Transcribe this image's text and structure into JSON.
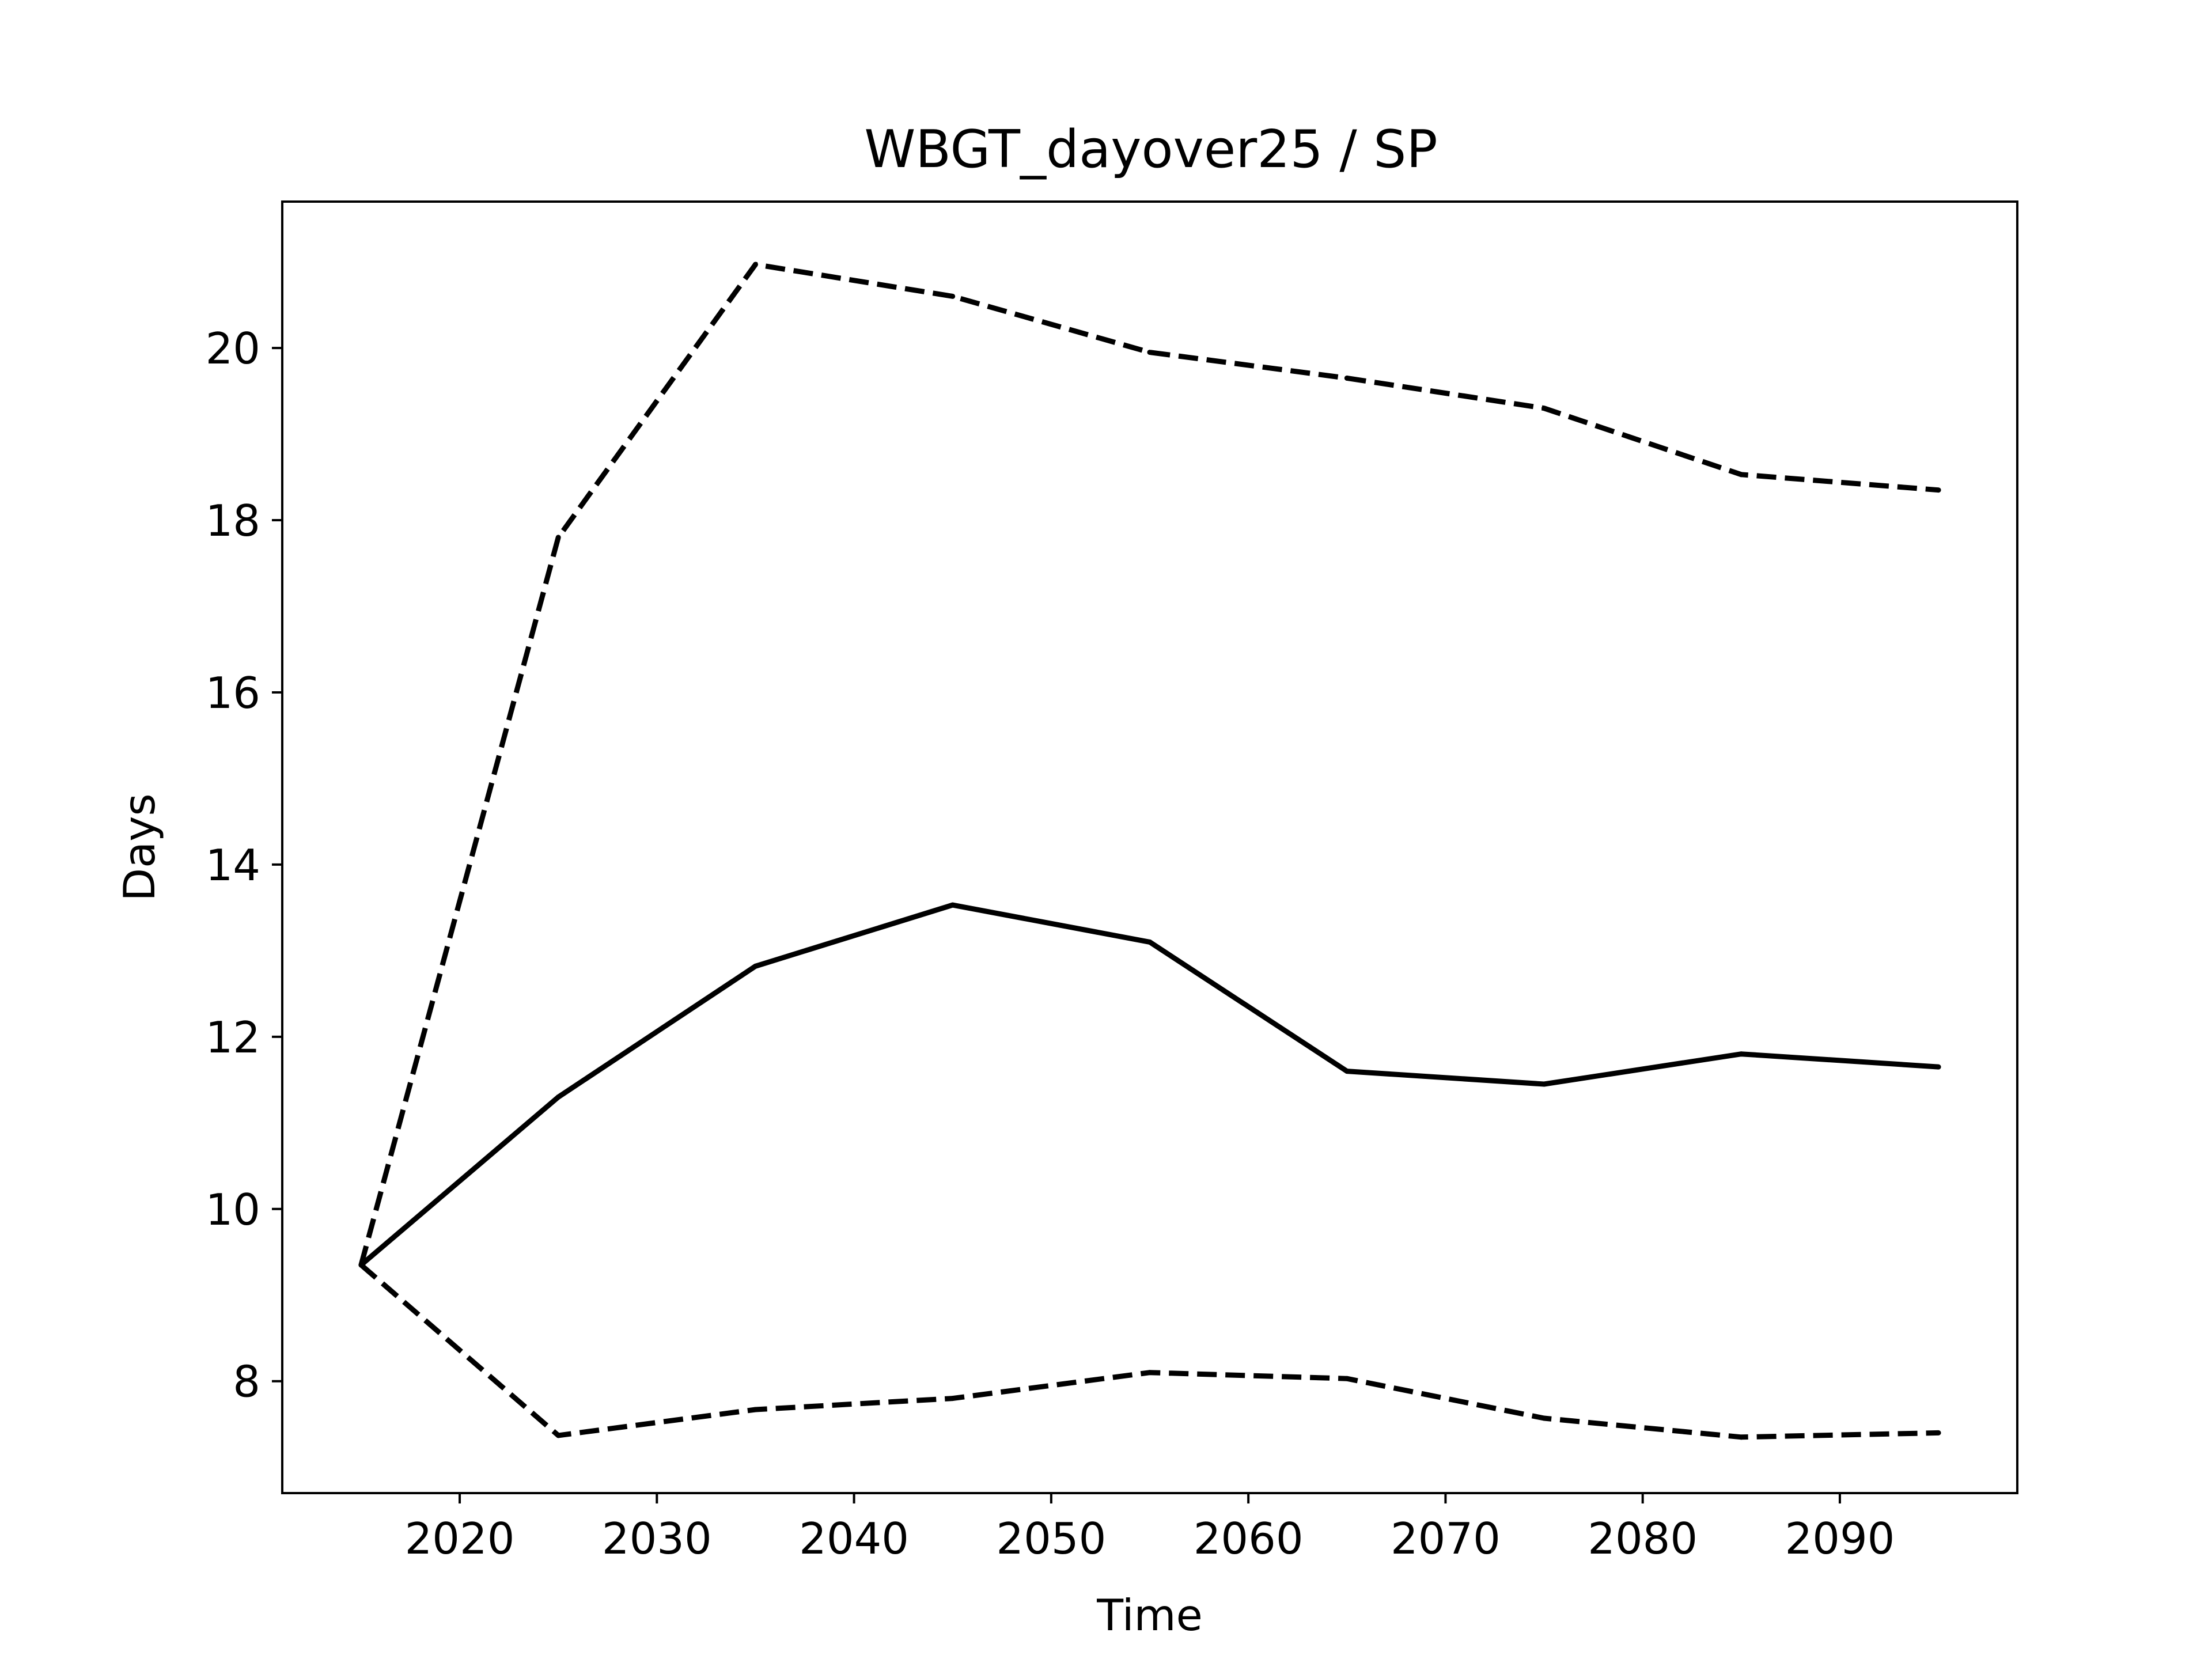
{
  "chart_data": {
    "type": "line",
    "title": "WBGT_dayover25 / SP",
    "xlabel": "Time",
    "ylabel": "Days",
    "xlim": [
      2011,
      2099
    ],
    "ylim": [
      6.7,
      21.7
    ],
    "xticks": [
      2020,
      2030,
      2040,
      2050,
      2060,
      2070,
      2080,
      2090
    ],
    "yticks": [
      8,
      10,
      12,
      14,
      16,
      18,
      20
    ],
    "grid": false,
    "legend": "none",
    "x": [
      2015,
      2025,
      2035,
      2045,
      2055,
      2065,
      2075,
      2085,
      2095
    ],
    "series": [
      {
        "style": "solid",
        "color": "#000000",
        "values": [
          9.35,
          11.3,
          12.82,
          13.53,
          13.1,
          11.6,
          11.45,
          11.8,
          11.65
        ]
      },
      {
        "style": "dashed",
        "color": "#000000",
        "values": [
          9.35,
          17.8,
          20.97,
          20.6,
          19.95,
          19.65,
          19.3,
          18.53,
          18.35
        ]
      },
      {
        "style": "dashed",
        "color": "#000000",
        "values": [
          9.35,
          7.37,
          7.67,
          7.8,
          8.1,
          8.03,
          7.57,
          7.35,
          7.4
        ]
      }
    ]
  }
}
